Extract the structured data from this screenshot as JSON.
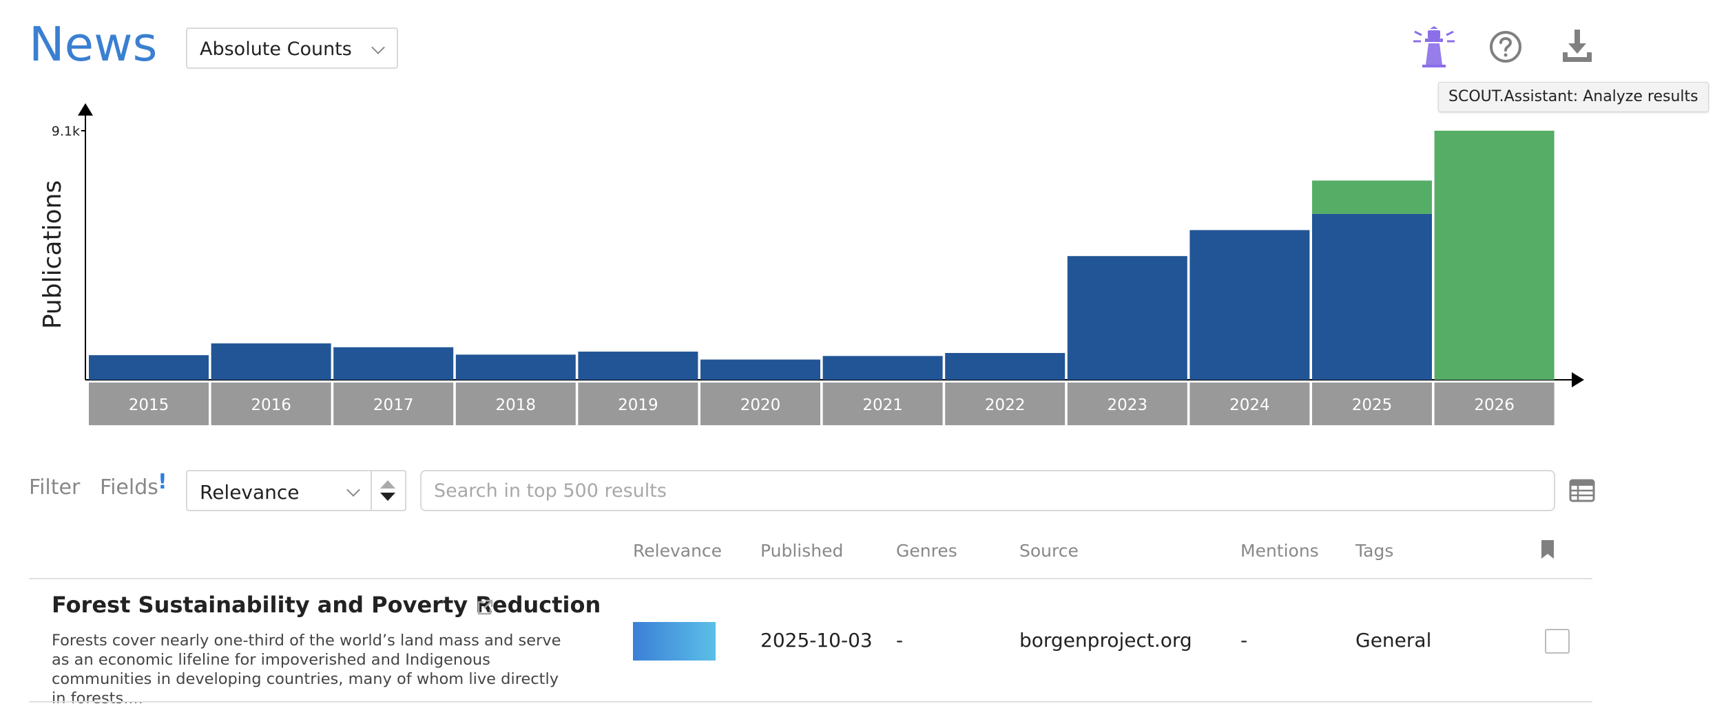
{
  "header": {
    "title": "News",
    "view_select": {
      "value": "Absolute Counts"
    },
    "icons": [
      "lighthouse-icon",
      "help-circle-icon",
      "download-icon"
    ],
    "tooltip": "SCOUT.Assistant: Analyze results"
  },
  "chart_data": {
    "type": "bar",
    "ylabel": "Publications",
    "ytick": "9.1k",
    "categories": [
      "2015",
      "2016",
      "2017",
      "2018",
      "2019",
      "2020",
      "2021",
      "2022",
      "2023",
      "2024",
      "2025",
      "2026"
    ],
    "series": [
      {
        "values": [
          900,
          1330,
          1190,
          920,
          1030,
          740,
          870,
          980,
          4520,
          5470,
          6060,
          0
        ]
      },
      {
        "values": [
          0,
          0,
          0,
          0,
          0,
          0,
          0,
          0,
          0,
          0,
          1220,
          9100
        ]
      }
    ],
    "ylim": [
      0,
      9100
    ],
    "colors": [
      "#225596",
      "#55ad66"
    ],
    "tick_bg": "#999999"
  },
  "filter": {
    "filter_label": "Filter",
    "fields_label": "Fields",
    "fields_mark": "!",
    "sort": {
      "value": "Relevance"
    },
    "search": {
      "placeholder": "Search in top 500 results"
    }
  },
  "table": {
    "columns": [
      "Relevance",
      "Published",
      "Genres",
      "Source",
      "Mentions",
      "Tags"
    ],
    "rows": [
      {
        "title": "Forest Sustainability and Poverty Reduction",
        "snippet": "Forests cover nearly one-third of the world’s land mass and serve as an economic lifeline for impoverished and Indigenous communities in developing countries, many of whom live directly in forests....",
        "published": "2025-10-03",
        "genres": "-",
        "source": "borgenproject.org",
        "mentions": "-",
        "tags": "General"
      }
    ]
  },
  "accent": "#3a7fd1"
}
